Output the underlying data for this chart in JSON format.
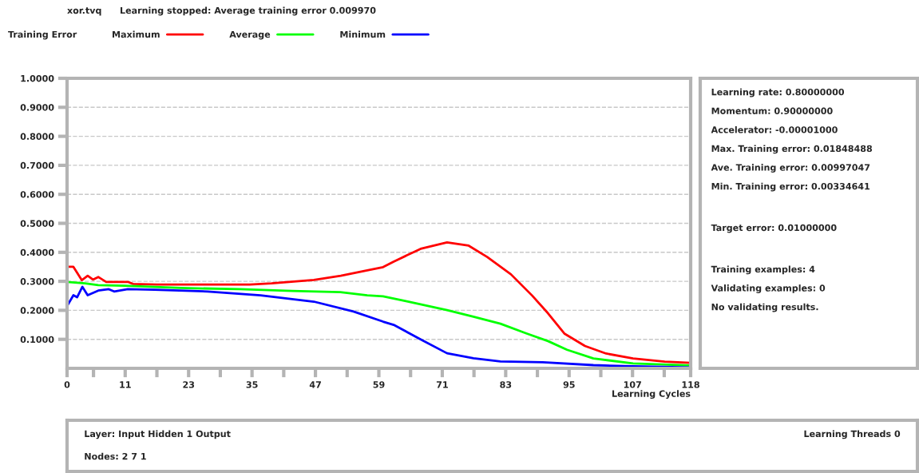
{
  "chart_data": {
    "type": "line",
    "title": "xor.tvq",
    "subtitle": "Learning stopped: Average training error 0.009970",
    "legend_title": "Training Error",
    "xlabel": "Learning Cycles",
    "series": [
      {
        "name": "Maximum",
        "color": "#ff0000",
        "x": [
          0,
          1.2,
          2.8,
          3.9,
          4.9,
          5.9,
          7.4,
          11.5,
          12.5,
          17,
          34.6,
          38.7,
          46.7,
          51.8,
          56.8,
          59.8,
          61.8,
          66.9,
          71.9,
          76,
          79.5,
          84,
          88,
          91,
          94.1,
          98,
          102,
          107.1,
          113.1,
          118
        ],
        "values": [
          0.35,
          0.35,
          0.304,
          0.319,
          0.306,
          0.315,
          0.298,
          0.298,
          0.291,
          0.289,
          0.289,
          0.293,
          0.305,
          0.319,
          0.338,
          0.349,
          0.368,
          0.412,
          0.434,
          0.423,
          0.384,
          0.324,
          0.251,
          0.19,
          0.12,
          0.077,
          0.051,
          0.034,
          0.023,
          0.019
        ]
      },
      {
        "name": "Average",
        "color": "#00ff00",
        "x": [
          0,
          3.4,
          5.9,
          10.9,
          21.5,
          32.6,
          42.6,
          51.7,
          56.8,
          59.8,
          64.3,
          71.9,
          76.9,
          82,
          87,
          91,
          94.6,
          99.6,
          107.1,
          118
        ],
        "values": [
          0.298,
          0.293,
          0.287,
          0.285,
          0.277,
          0.273,
          0.267,
          0.263,
          0.252,
          0.248,
          0.231,
          0.201,
          0.178,
          0.154,
          0.12,
          0.094,
          0.064,
          0.034,
          0.017,
          0.01
        ]
      },
      {
        "name": "Minimum",
        "color": "#0000ff",
        "x": [
          0,
          1.2,
          1.9,
          2.9,
          3.9,
          5.9,
          7.9,
          8.9,
          11.5,
          16.5,
          26.6,
          36.6,
          46.7,
          54.2,
          59.8,
          61.8,
          66.9,
          71.9,
          76.9,
          82,
          90,
          99.6,
          107.1,
          118
        ],
        "values": [
          0.215,
          0.252,
          0.245,
          0.281,
          0.252,
          0.268,
          0.273,
          0.265,
          0.273,
          0.271,
          0.265,
          0.252,
          0.23,
          0.196,
          0.161,
          0.15,
          0.1,
          0.052,
          0.035,
          0.024,
          0.021,
          0.011,
          0.007,
          0.003
        ]
      }
    ],
    "xlim": [
      0,
      118
    ],
    "ylim": [
      0,
      1
    ],
    "xticks": [
      0,
      {
        "value": 5,
        "label": null
      },
      11,
      {
        "value": 17,
        "label": null
      },
      23,
      {
        "value": 29,
        "label": null
      },
      35,
      {
        "value": 41,
        "label": null
      },
      47,
      {
        "value": 53,
        "label": null
      },
      59,
      {
        "value": 65,
        "label": null
      },
      71,
      {
        "value": 77,
        "label": null
      },
      83,
      {
        "value": 89,
        "label": null
      },
      95,
      {
        "value": 101,
        "label": null
      },
      107,
      {
        "value": 113,
        "label": null
      },
      118
    ],
    "yticks": [
      {
        "value": 0.1,
        "label": "0.1000"
      },
      {
        "value": 0.2,
        "label": "0.2000"
      },
      {
        "value": 0.3,
        "label": "0.3000"
      },
      {
        "value": 0.4,
        "label": "0.4000"
      },
      {
        "value": 0.5,
        "label": "0.5000"
      },
      {
        "value": 0.6,
        "label": "0.6000"
      },
      {
        "value": 0.7,
        "label": "0.7000"
      },
      {
        "value": 0.8,
        "label": "0.8000"
      },
      {
        "value": 0.9,
        "label": "0.9000"
      },
      {
        "value": 1.0,
        "label": "1.0000"
      }
    ],
    "grid": "y",
    "legend": "top",
    "marker": "none",
    "line_style": "solid",
    "annotations": [
      "Learning rate: 0.80000000",
      "Momentum: 0.90000000",
      "Accelerator: -0.00001000",
      "Max. Training error: 0.01848488",
      "Ave. Training error: 0.00997047",
      "Min. Training error: 0.00334641",
      "Target error: 0.01000000",
      "Training examples: 4",
      "Validating examples: 0",
      "No validating results.",
      "Layer: Input Hidden 1 Output",
      "Nodes: 2 7 1",
      "Learning Threads 0"
    ]
  }
}
